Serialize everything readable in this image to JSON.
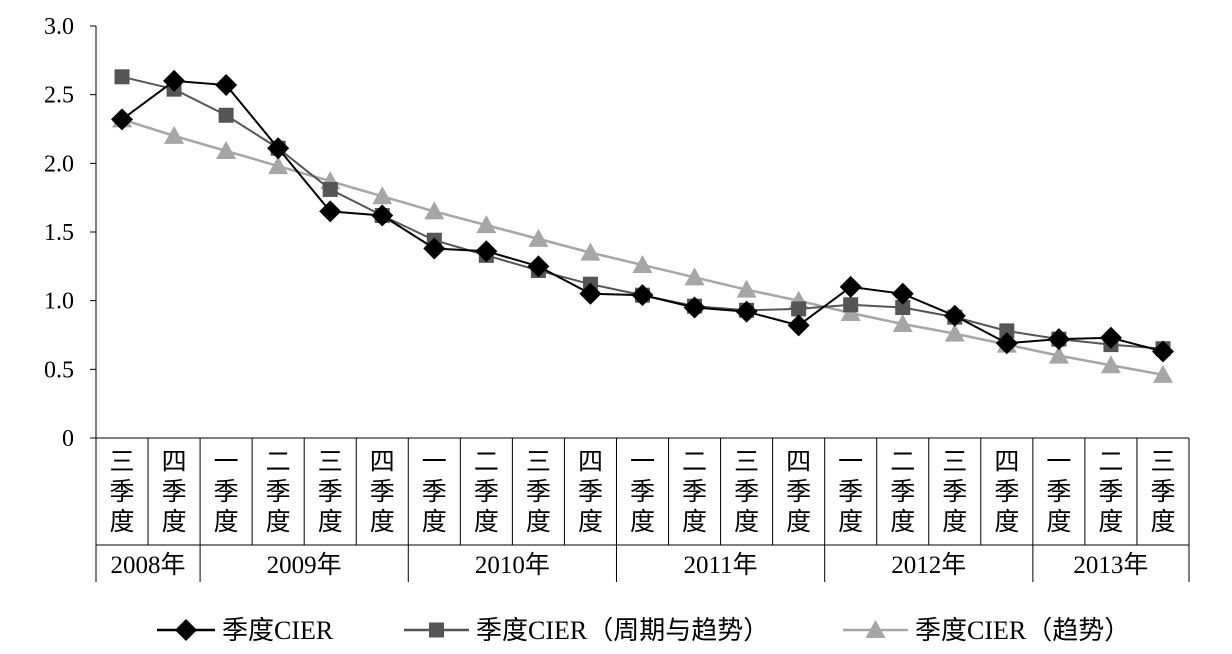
{
  "chart_data": {
    "type": "line",
    "title": "",
    "xlabel": "",
    "ylabel": "",
    "ylim": [
      0,
      3.0
    ],
    "y_ticks": [
      "0",
      "0.5",
      "1.0",
      "1.5",
      "2.0",
      "2.5",
      "3.0"
    ],
    "y_tick_values": [
      0,
      0.5,
      1.0,
      1.5,
      2.0,
      2.5,
      3.0
    ],
    "categories": [
      "三季度",
      "四季度",
      "一季度",
      "二季度",
      "三季度",
      "四季度",
      "一季度",
      "二季度",
      "三季度",
      "四季度",
      "一季度",
      "二季度",
      "三季度",
      "四季度",
      "一季度",
      "二季度",
      "三季度",
      "四季度",
      "一季度",
      "二季度",
      "三季度"
    ],
    "year_groups": [
      {
        "label": "2008年",
        "start": 0,
        "count": 2
      },
      {
        "label": "2009年",
        "start": 2,
        "count": 4
      },
      {
        "label": "2010年",
        "start": 6,
        "count": 4
      },
      {
        "label": "2011年",
        "start": 10,
        "count": 4
      },
      {
        "label": "2012年",
        "start": 14,
        "count": 4
      },
      {
        "label": "2013年",
        "start": 18,
        "count": 3
      }
    ],
    "grid": false,
    "legend_position": "bottom",
    "series": [
      {
        "name": "季度CIER",
        "marker": "diamond",
        "color": "#000000",
        "values": [
          2.32,
          2.6,
          2.57,
          2.11,
          1.65,
          1.62,
          1.38,
          1.36,
          1.25,
          1.05,
          1.04,
          0.95,
          0.92,
          0.82,
          1.1,
          1.05,
          0.89,
          0.69,
          0.72,
          0.73,
          0.63
        ]
      },
      {
        "name": "季度CIER（周期与趋势）",
        "marker": "square",
        "color": "#555555",
        "values": [
          2.63,
          2.54,
          2.35,
          2.11,
          1.81,
          1.62,
          1.44,
          1.33,
          1.22,
          1.12,
          1.04,
          0.96,
          0.93,
          0.94,
          0.97,
          0.95,
          0.88,
          0.78,
          0.72,
          0.68,
          0.65
        ]
      },
      {
        "name": "季度CIER（趋势）",
        "marker": "triangle",
        "color": "#a6a6a6",
        "values": [
          2.32,
          2.2,
          2.09,
          1.98,
          1.87,
          1.76,
          1.65,
          1.55,
          1.45,
          1.35,
          1.26,
          1.17,
          1.08,
          1.0,
          0.91,
          0.83,
          0.76,
          0.68,
          0.6,
          0.53,
          0.46
        ]
      }
    ]
  }
}
